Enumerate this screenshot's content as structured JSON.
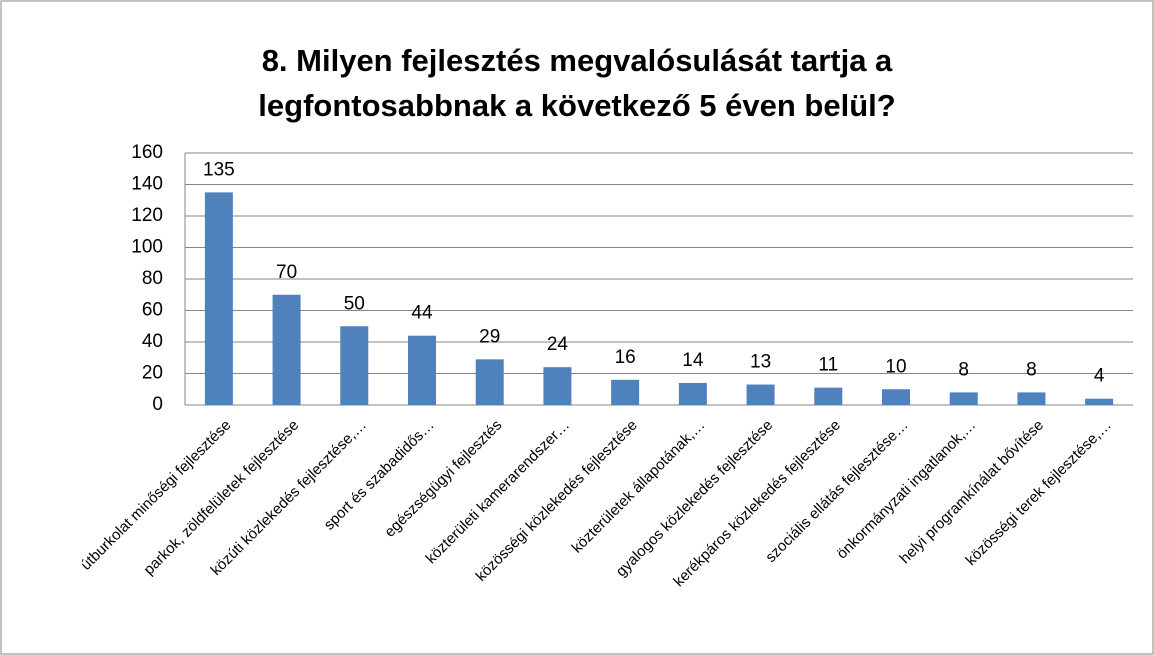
{
  "chart_data": {
    "type": "bar",
    "title": "8. Milyen fejlesztés megvalósulását tartja a legfontosabbnak a következő 5 éven belül?",
    "categories": [
      "útburkolat minőségi fejlesztése",
      "parkok, zöldfelületek fejlesztése",
      "közúti közlekedés fejlesztése,…",
      "sport és szabadidős…",
      "egészségügyi fejlesztés",
      "közterületi kamerarendszer…",
      "közösségi közlekedés fejlesztése",
      "közterületek állapotának,…",
      "gyalogos közlekedés fejlesztése",
      "kerékpáros közlekedés fejlesztése",
      "szociális ellátás fejlesztése…",
      "önkormányzati ingatlanok,…",
      "helyi programkínálat bővítése",
      "közösségi terek fejlesztése,…"
    ],
    "values": [
      135,
      70,
      50,
      44,
      29,
      24,
      16,
      14,
      13,
      11,
      10,
      8,
      8,
      4
    ],
    "color": "#4f81bd",
    "ylim": [
      0,
      160
    ],
    "yticks": [
      0,
      20,
      40,
      60,
      80,
      100,
      120,
      140,
      160
    ],
    "grid": true
  }
}
